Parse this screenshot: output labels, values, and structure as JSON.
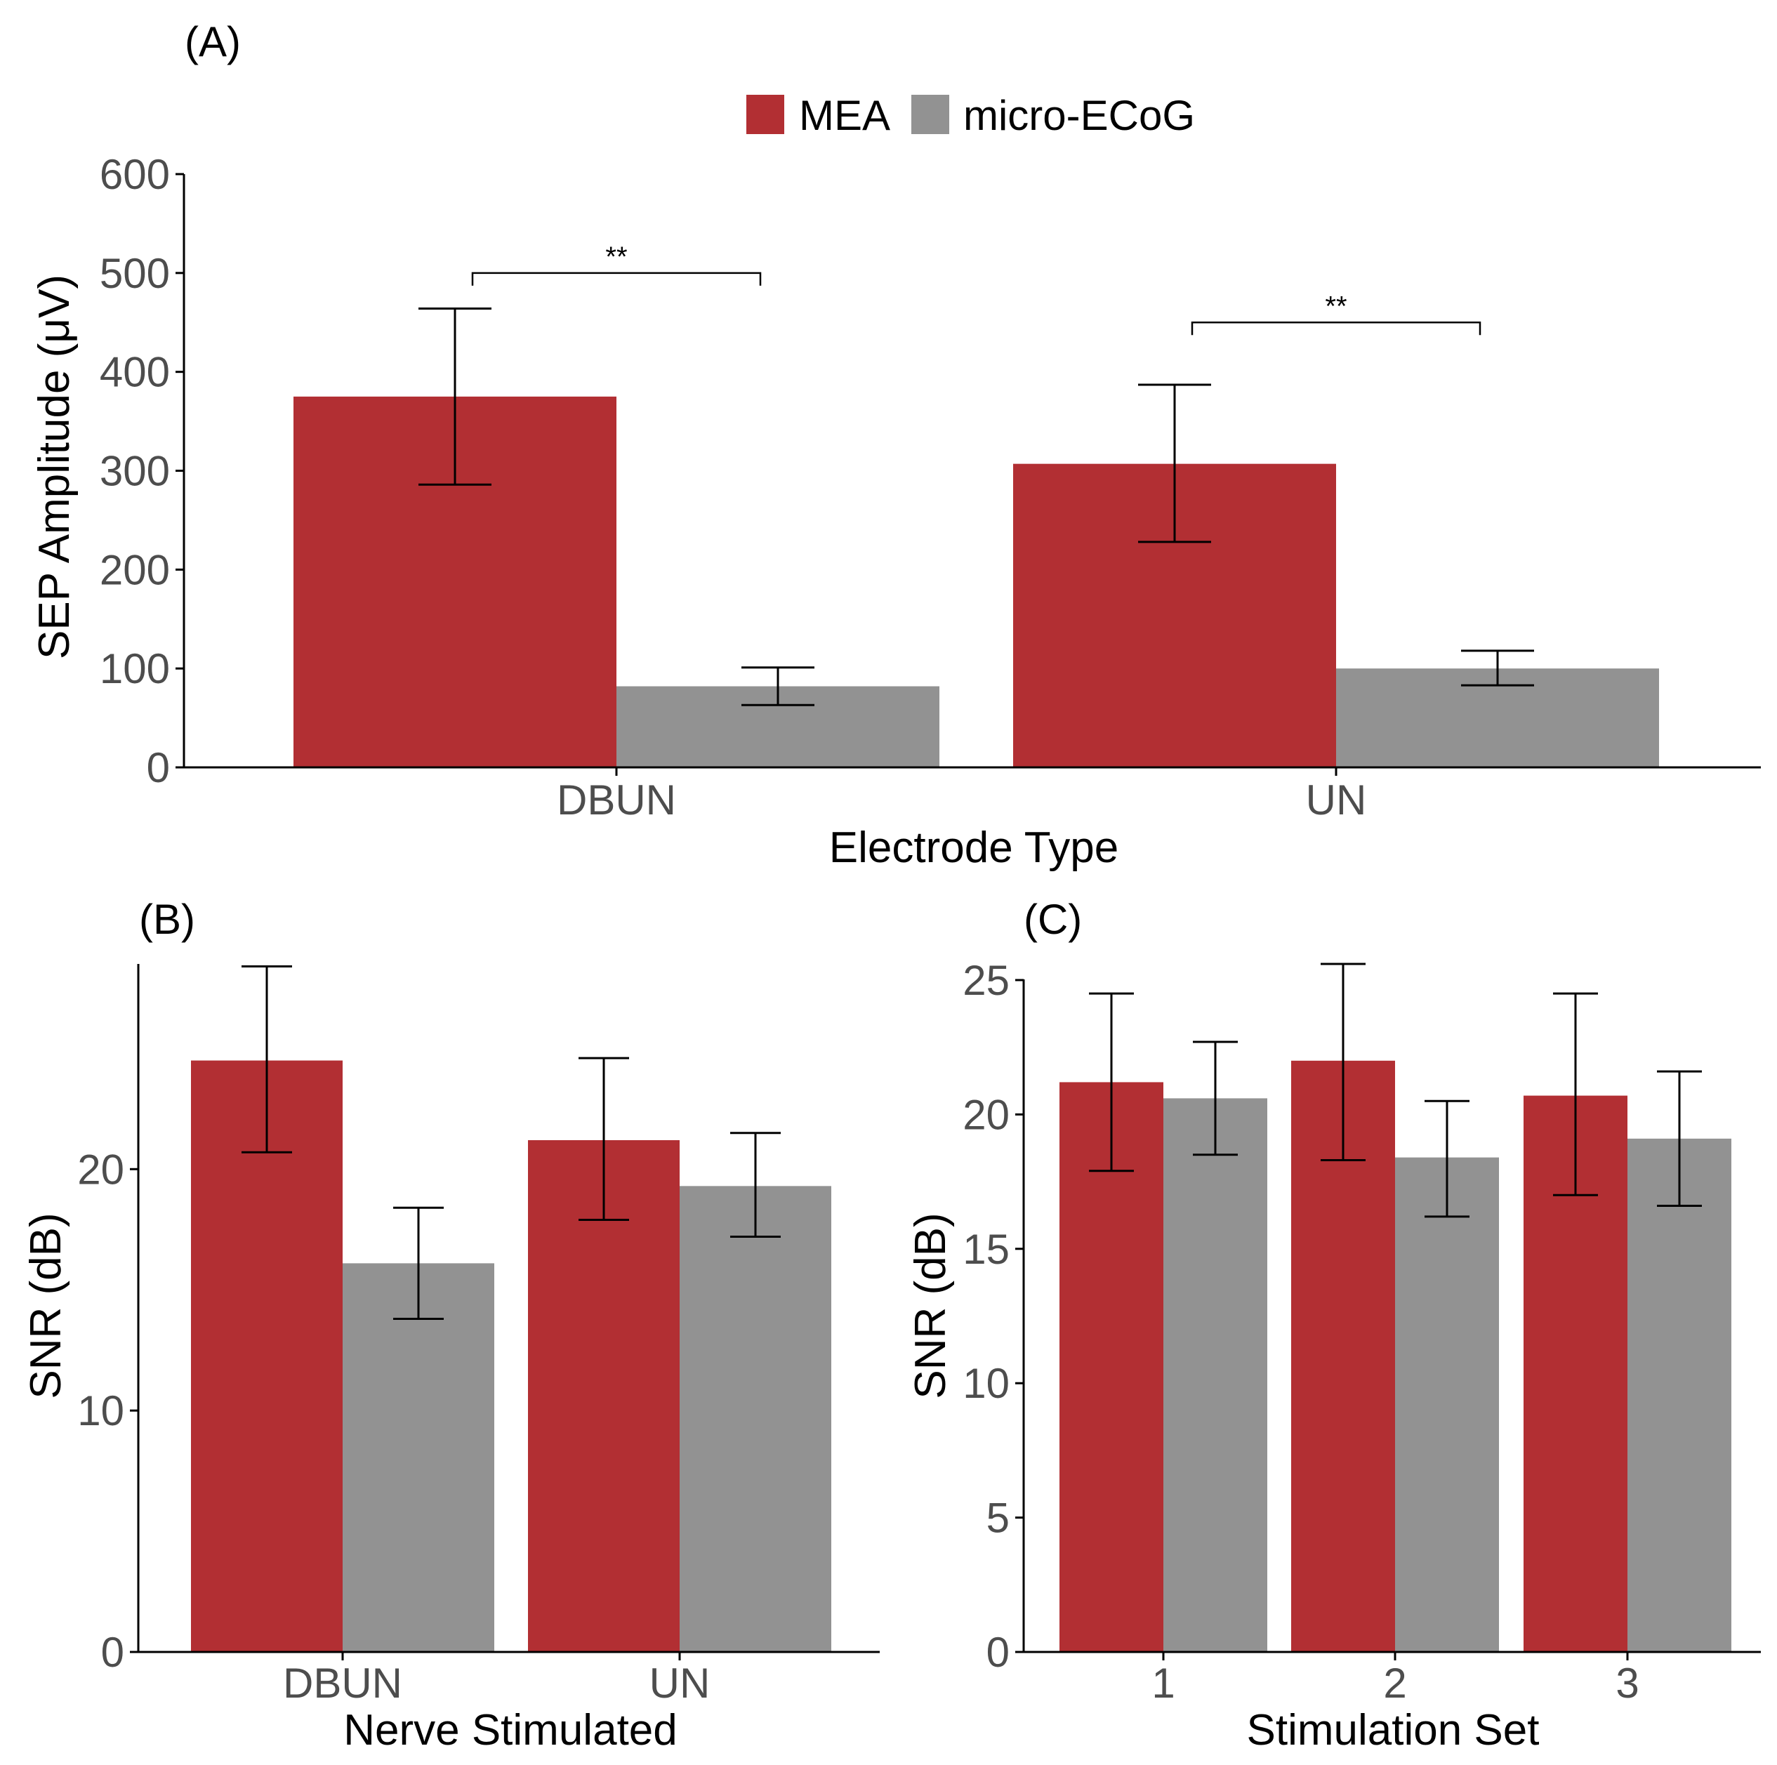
{
  "legend": {
    "items": [
      {
        "label": "MEA",
        "color": "#b22f33"
      },
      {
        "label": "micro-ECoG",
        "color": "#929292"
      }
    ]
  },
  "chart_data": [
    {
      "panel": "(A)",
      "type": "bar",
      "categories": [
        "DBUN",
        "UN"
      ],
      "series": [
        {
          "name": "MEA",
          "color": "#b22f33",
          "values": [
            375,
            307
          ],
          "err_low": [
            286,
            228
          ],
          "err_high": [
            464,
            387
          ]
        },
        {
          "name": "micro-ECoG",
          "color": "#929292",
          "values": [
            82,
            100
          ],
          "err_low": [
            63,
            83
          ],
          "err_high": [
            101,
            118
          ]
        }
      ],
      "xlabel": "Electrode Type",
      "ylabel": "SEP Amplitude  (μV)",
      "ylim": [
        0,
        600
      ],
      "yticks": [
        "0",
        "100",
        "200",
        "300",
        "400",
        "500",
        "600"
      ],
      "grid": false,
      "annotations": [
        {
          "text": "**",
          "category": "DBUN",
          "y": 500
        },
        {
          "text": "**",
          "category": "UN",
          "y": 450
        }
      ]
    },
    {
      "panel": "(B)",
      "type": "bar",
      "categories": [
        "DBUN",
        "UN"
      ],
      "series": [
        {
          "name": "MEA",
          "color": "#b22f33",
          "values": [
            24.5,
            21.2
          ],
          "err_low": [
            20.7,
            17.9
          ],
          "err_high": [
            28.4,
            24.6
          ]
        },
        {
          "name": "micro-ECoG",
          "color": "#929292",
          "values": [
            16.1,
            19.3
          ],
          "err_low": [
            13.8,
            17.2
          ],
          "err_high": [
            18.4,
            21.5
          ]
        }
      ],
      "xlabel": "Nerve Stimulated",
      "ylabel": "SNR (dB)",
      "ylim": [
        0,
        28.5
      ],
      "yticks": [
        "0",
        "10",
        "20"
      ],
      "grid": false
    },
    {
      "panel": "(C)",
      "type": "bar",
      "categories": [
        "1",
        "2",
        "3"
      ],
      "series": [
        {
          "name": "MEA",
          "color": "#b22f33",
          "values": [
            21.2,
            22.0,
            20.7
          ],
          "err_low": [
            17.9,
            18.3,
            17.0
          ],
          "err_high": [
            24.5,
            25.6,
            24.5
          ]
        },
        {
          "name": "micro-ECoG",
          "color": "#929292",
          "values": [
            20.6,
            18.4,
            19.1
          ],
          "err_low": [
            18.5,
            16.2,
            16.6
          ],
          "err_high": [
            22.7,
            20.5,
            21.6
          ]
        }
      ],
      "xlabel": "Stimulation Set",
      "ylabel": "SNR (dB)",
      "ylim": [
        0,
        25.6
      ],
      "yticks": [
        "0",
        "5",
        "10",
        "15",
        "20",
        "25"
      ],
      "grid": false
    }
  ]
}
